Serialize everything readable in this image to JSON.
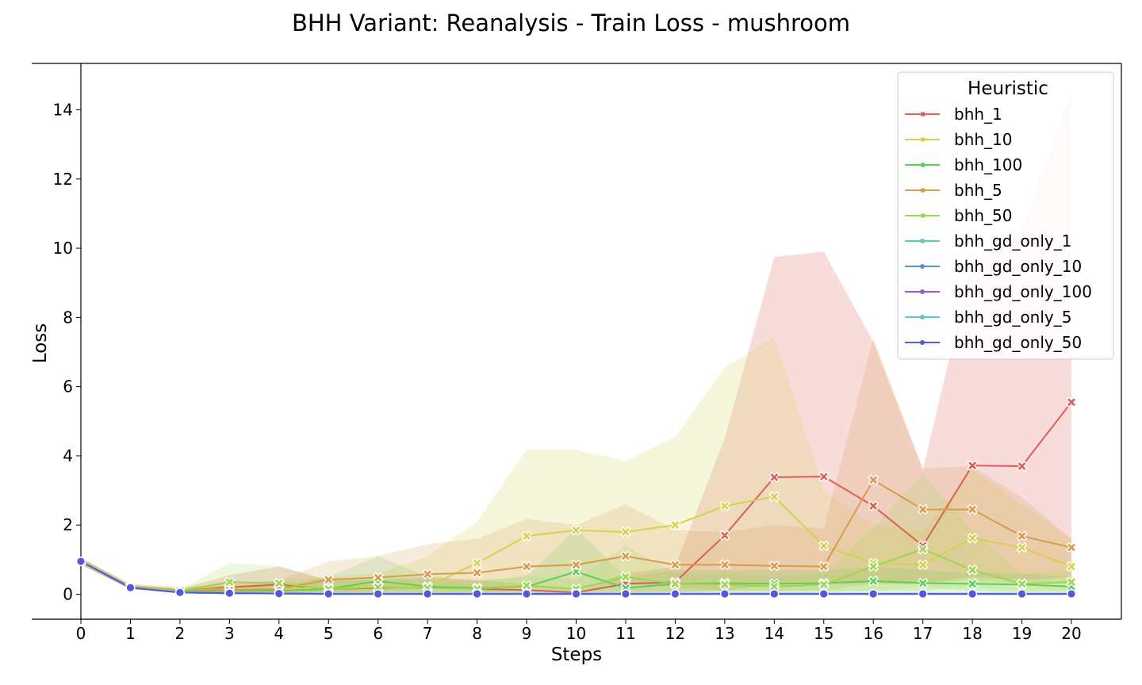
{
  "chart_data": {
    "type": "line",
    "title": "BHH Variant: Reanalysis - Train Loss - mushroom",
    "xlabel": "Steps",
    "ylabel": "Loss",
    "xlim": [
      -0.2,
      21.0
    ],
    "ylim": [
      -0.7,
      15.5
    ],
    "x": [
      0,
      1,
      2,
      3,
      4,
      5,
      6,
      7,
      8,
      9,
      10,
      11,
      12,
      13,
      14,
      15,
      16,
      17,
      18,
      19,
      20
    ],
    "xticks": [
      "0",
      "1",
      "2",
      "3",
      "4",
      "5",
      "6",
      "7",
      "8",
      "9",
      "10",
      "11",
      "12",
      "13",
      "14",
      "15",
      "16",
      "17",
      "18",
      "19",
      "20"
    ],
    "yticks": [
      0,
      2,
      4,
      6,
      8,
      10,
      12,
      14
    ],
    "grid": false,
    "legend": {
      "title": "Heuristic",
      "position": "top-right"
    },
    "series": [
      {
        "name": "bhh_1",
        "color": "#db5f57",
        "marker": "x",
        "values": [
          0.95,
          0.2,
          0.1,
          0.2,
          0.28,
          0.15,
          0.18,
          0.22,
          0.15,
          0.12,
          0.05,
          0.3,
          0.35,
          1.7,
          3.38,
          3.4,
          2.55,
          1.4,
          3.72,
          3.7,
          5.55
        ],
        "lower": [
          0.85,
          0.15,
          0.05,
          0.05,
          0.05,
          0.05,
          0.05,
          0.05,
          0.05,
          0.05,
          0.02,
          0.05,
          0.05,
          0.1,
          0.3,
          0.3,
          0.3,
          0.3,
          0.5,
          0.4,
          0.5
        ],
        "upper": [
          1.05,
          0.26,
          0.15,
          0.55,
          0.8,
          0.4,
          0.4,
          0.5,
          0.4,
          0.3,
          0.1,
          0.6,
          0.8,
          4.5,
          9.75,
          9.9,
          7.3,
          3.6,
          9.6,
          10.5,
          14.6
        ],
        "band_alpha": 0.22
      },
      {
        "name": "bhh_10",
        "color": "#d3d34e",
        "marker": "x",
        "values": [
          0.95,
          0.22,
          0.12,
          0.15,
          0.15,
          0.2,
          0.2,
          0.22,
          0.9,
          1.68,
          1.85,
          1.8,
          2.0,
          2.55,
          2.82,
          1.4,
          0.9,
          0.85,
          1.62,
          1.35,
          0.8
        ],
        "lower": [
          0.85,
          0.15,
          0.05,
          0.05,
          0.05,
          0.05,
          0.05,
          0.05,
          0.05,
          0.1,
          0.1,
          0.1,
          0.1,
          0.1,
          0.1,
          0.1,
          0.1,
          0.1,
          0.2,
          0.1,
          0.1
        ],
        "upper": [
          1.05,
          0.3,
          0.2,
          0.3,
          0.4,
          0.5,
          0.6,
          1.1,
          2.1,
          4.18,
          4.18,
          3.85,
          4.55,
          6.55,
          7.45,
          3.0,
          2.0,
          1.8,
          3.6,
          2.6,
          1.6
        ],
        "band_alpha": 0.2
      },
      {
        "name": "bhh_100",
        "color": "#57d356",
        "marker": "x",
        "values": [
          0.95,
          0.2,
          0.08,
          0.1,
          0.1,
          0.15,
          0.38,
          0.22,
          0.18,
          0.22,
          0.65,
          0.18,
          0.3,
          0.32,
          0.3,
          0.32,
          0.38,
          0.32,
          0.3,
          0.28,
          0.22
        ],
        "lower": [
          0.85,
          0.15,
          0.05,
          0.02,
          0.02,
          0.02,
          0.05,
          0.05,
          0.05,
          0.05,
          0.05,
          0.05,
          0.05,
          0.05,
          0.05,
          0.05,
          0.05,
          0.05,
          0.05,
          0.05,
          0.05
        ],
        "upper": [
          1.05,
          0.26,
          0.15,
          0.25,
          0.25,
          0.5,
          1.1,
          0.5,
          0.4,
          0.5,
          1.9,
          0.5,
          0.7,
          0.7,
          0.7,
          0.7,
          0.8,
          0.7,
          0.6,
          0.6,
          0.5
        ],
        "band_alpha": 0.18
      },
      {
        "name": "bhh_5",
        "color": "#d99a4e",
        "marker": "x",
        "values": [
          0.95,
          0.22,
          0.12,
          0.12,
          0.15,
          0.42,
          0.48,
          0.58,
          0.62,
          0.8,
          0.85,
          1.1,
          0.85,
          0.85,
          0.82,
          0.8,
          3.3,
          2.45,
          2.45,
          1.68,
          1.35
        ],
        "lower": [
          0.85,
          0.15,
          0.05,
          0.05,
          0.05,
          0.05,
          0.1,
          0.15,
          0.15,
          0.2,
          0.2,
          0.3,
          0.2,
          0.1,
          0.1,
          0.1,
          0.3,
          0.3,
          0.4,
          0.3,
          0.3
        ],
        "upper": [
          1.05,
          0.3,
          0.2,
          0.3,
          0.4,
          0.95,
          1.1,
          1.45,
          1.6,
          2.18,
          2.0,
          2.6,
          1.85,
          1.8,
          2.0,
          1.9,
          7.4,
          3.65,
          3.7,
          2.8,
          1.6
        ],
        "band_alpha": 0.2
      },
      {
        "name": "bhh_50",
        "color": "#9bd64e",
        "marker": "x",
        "values": [
          0.95,
          0.2,
          0.1,
          0.35,
          0.32,
          0.15,
          0.2,
          0.18,
          0.15,
          0.25,
          0.15,
          0.5,
          0.3,
          0.28,
          0.22,
          0.28,
          0.8,
          1.3,
          0.7,
          0.3,
          0.35
        ],
        "lower": [
          0.85,
          0.15,
          0.05,
          0.05,
          0.05,
          0.02,
          0.02,
          0.02,
          0.02,
          0.02,
          0.02,
          0.05,
          0.05,
          0.05,
          0.05,
          0.05,
          0.1,
          0.2,
          0.1,
          0.05,
          0.05
        ],
        "upper": [
          1.05,
          0.26,
          0.15,
          0.9,
          0.82,
          0.4,
          0.5,
          0.4,
          0.35,
          0.55,
          0.4,
          1.4,
          0.6,
          0.6,
          0.5,
          0.6,
          1.9,
          3.5,
          1.8,
          0.6,
          0.7
        ],
        "band_alpha": 0.18
      },
      {
        "name": "bhh_gd_only_1",
        "color": "#57d3a0",
        "marker": "o",
        "values": [
          0.95,
          0.19,
          0.06,
          0.04,
          0.03,
          0.02,
          0.02,
          0.02,
          0.02,
          0.02,
          0.02,
          0.02,
          0.02,
          0.02,
          0.02,
          0.02,
          0.02,
          0.02,
          0.02,
          0.02,
          0.02
        ]
      },
      {
        "name": "bhh_gd_only_10",
        "color": "#5290db",
        "marker": "o",
        "values": [
          0.95,
          0.19,
          0.05,
          0.03,
          0.02,
          0.01,
          0.01,
          0.01,
          0.01,
          0.01,
          0.01,
          0.01,
          0.01,
          0.01,
          0.01,
          0.01,
          0.01,
          0.01,
          0.01,
          0.01,
          0.01
        ]
      },
      {
        "name": "bhh_gd_only_100",
        "color": "#9b57db",
        "marker": "o",
        "values": [
          0.95,
          0.19,
          0.05,
          0.03,
          0.02,
          0.01,
          0.01,
          0.01,
          0.01,
          0.01,
          0.01,
          0.01,
          0.01,
          0.01,
          0.01,
          0.01,
          0.01,
          0.01,
          0.01,
          0.01,
          0.01
        ]
      },
      {
        "name": "bhh_gd_only_5",
        "color": "#57c8d3",
        "marker": "o",
        "values": [
          0.95,
          0.19,
          0.05,
          0.03,
          0.02,
          0.01,
          0.01,
          0.01,
          0.01,
          0.01,
          0.01,
          0.01,
          0.01,
          0.01,
          0.01,
          0.01,
          0.01,
          0.01,
          0.01,
          0.01,
          0.01
        ]
      },
      {
        "name": "bhh_gd_only_50",
        "color": "#5757db",
        "marker": "o",
        "values": [
          0.95,
          0.19,
          0.05,
          0.03,
          0.02,
          0.01,
          0.01,
          0.01,
          0.01,
          0.01,
          0.01,
          0.01,
          0.01,
          0.01,
          0.01,
          0.01,
          0.01,
          0.01,
          0.01,
          0.01,
          0.01
        ]
      }
    ]
  }
}
